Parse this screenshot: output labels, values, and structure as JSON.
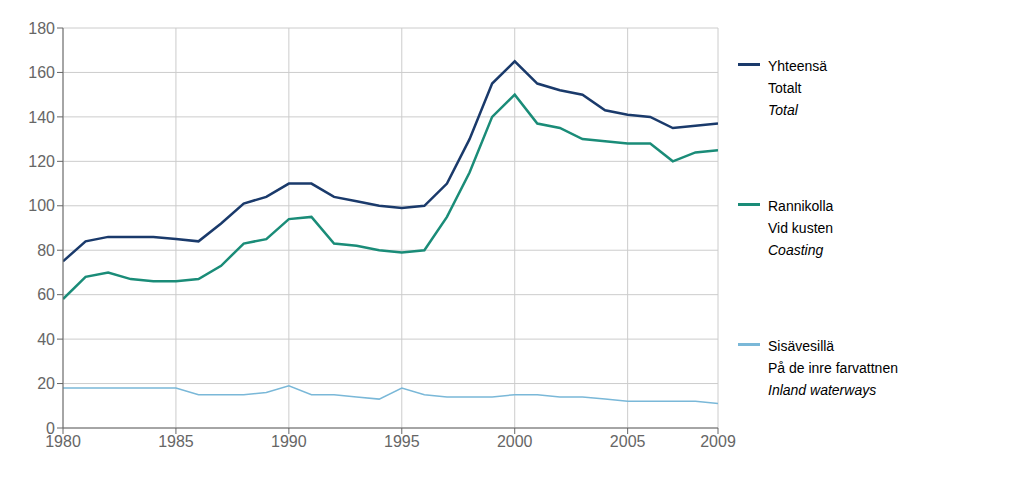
{
  "chart_data": {
    "type": "line",
    "x": [
      1980,
      1981,
      1982,
      1983,
      1984,
      1985,
      1986,
      1987,
      1988,
      1989,
      1990,
      1991,
      1992,
      1993,
      1994,
      1995,
      1996,
      1997,
      1998,
      1999,
      2000,
      2001,
      2002,
      2003,
      2004,
      2005,
      2006,
      2007,
      2008,
      2009
    ],
    "series": [
      {
        "name": "Yhteensä",
        "color": "#1a3a6b",
        "values": [
          75,
          84,
          86,
          86,
          86,
          85,
          84,
          92,
          101,
          104,
          110,
          110,
          104,
          102,
          100,
          99,
          100,
          110,
          130,
          155,
          165,
          155,
          152,
          150,
          143,
          141,
          140,
          135,
          136,
          137
        ]
      },
      {
        "name": "Rannikolla",
        "color": "#1a8c78",
        "values": [
          58,
          68,
          70,
          67,
          66,
          66,
          67,
          73,
          83,
          85,
          94,
          95,
          83,
          82,
          80,
          79,
          80,
          95,
          115,
          140,
          150,
          137,
          135,
          130,
          129,
          128,
          128,
          120,
          124,
          125
        ]
      },
      {
        "name": "Sisävesillä",
        "color": "#7ab8d8",
        "values": [
          18,
          18,
          18,
          18,
          18,
          18,
          15,
          15,
          15,
          16,
          19,
          15,
          15,
          14,
          13,
          18,
          15,
          14,
          14,
          14,
          15,
          15,
          14,
          14,
          13,
          12,
          12,
          12,
          12,
          11
        ]
      }
    ],
    "annotations": [
      "Totalt",
      "Total",
      "Vid kusten",
      "Coasting",
      "På de inre farvattnen",
      "Inland waterways"
    ],
    "xlim": [
      1980,
      2009
    ],
    "xticks": [
      1980,
      1985,
      1990,
      1995,
      2000,
      2005,
      2009
    ],
    "ylim": [
      0,
      180
    ],
    "yticks": [
      0,
      20,
      40,
      60,
      80,
      100,
      120,
      140,
      160,
      180
    ],
    "grid": true
  }
}
